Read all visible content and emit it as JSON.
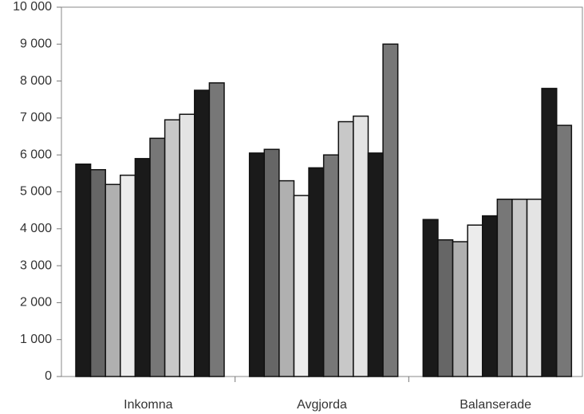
{
  "chart_data": {
    "type": "bar",
    "categories": [
      "Inkomna",
      "Avgjorda",
      "Balanserade"
    ],
    "series": [
      {
        "color": "#1a1a1a",
        "values": [
          5750,
          6050,
          4250
        ]
      },
      {
        "color": "#666666",
        "values": [
          5600,
          6150,
          3700
        ]
      },
      {
        "color": "#b0b0b0",
        "values": [
          5200,
          5300,
          3650
        ]
      },
      {
        "color": "#ececec",
        "values": [
          5450,
          4900,
          4100
        ]
      },
      {
        "color": "#1a1a1a",
        "values": [
          5900,
          5650,
          4350
        ]
      },
      {
        "color": "#777777",
        "values": [
          6450,
          6000,
          4800
        ]
      },
      {
        "color": "#c8c8c8",
        "values": [
          6950,
          6900,
          4800
        ]
      },
      {
        "color": "#e4e4e4",
        "values": [
          7100,
          7050,
          4800
        ]
      },
      {
        "color": "#1a1a1a",
        "values": [
          7750,
          6050,
          7800
        ]
      },
      {
        "color": "#777777",
        "values": [
          7950,
          9000,
          6800
        ]
      }
    ],
    "ylim": [
      0,
      10000
    ],
    "yticks": [
      0,
      {
        "value": 1000,
        "label": "1 000"
      },
      {
        "value": 2000,
        "label": "2 000"
      },
      {
        "value": 3000,
        "label": "3 000"
      },
      {
        "value": 4000,
        "label": "4 000"
      },
      {
        "value": 5000,
        "label": "5 000"
      },
      {
        "value": 6000,
        "label": "6 000"
      },
      {
        "value": 7000,
        "label": "7 000"
      },
      {
        "value": 8000,
        "label": "8 000"
      },
      {
        "value": 9000,
        "label": "9 000"
      },
      {
        "value": 10000,
        "label": "10 000"
      }
    ],
    "grid": false
  }
}
